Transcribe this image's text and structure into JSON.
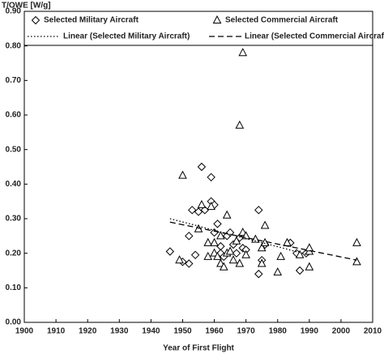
{
  "chart_data": {
    "type": "scatter",
    "x_label": "Year of First Flight",
    "y_label": "T/OWE [W/g]",
    "xlim": [
      1900,
      2010
    ],
    "xticks": [
      1900,
      1910,
      1920,
      1930,
      1940,
      1950,
      1960,
      1970,
      1980,
      1990,
      2000,
      2010
    ],
    "ylim": [
      0,
      0.9
    ],
    "yticks": [
      {
        "value": 0,
        "label": "0.00"
      },
      {
        "value": 0.1,
        "label": "0.10"
      },
      {
        "value": 0.2,
        "label": "0.20"
      },
      {
        "value": 0.3,
        "label": "0.30"
      },
      {
        "value": 0.4,
        "label": "0.40"
      },
      {
        "value": 0.5,
        "label": "0.50"
      },
      {
        "value": 0.6,
        "label": "0.60"
      },
      {
        "value": 0.7,
        "label": "0.70"
      },
      {
        "value": 0.8,
        "label": "0.80"
      },
      {
        "value": 0.9,
        "label": "0.90"
      }
    ],
    "color": "#000000",
    "series": [
      {
        "name": "Selected Military Aircraft",
        "marker": "diamond",
        "x": [
          1946,
          1950,
          1952,
          1952,
          1953,
          1954,
          1955,
          1956,
          1957,
          1959,
          1959,
          1960,
          1960,
          1961,
          1962,
          1962,
          1963,
          1964,
          1965,
          1966,
          1967,
          1968,
          1969,
          1970,
          1974,
          1974,
          1975,
          1976,
          1984,
          1986,
          1987,
          1989
        ],
        "values": [
          0.205,
          0.175,
          0.17,
          0.25,
          0.325,
          0.195,
          0.32,
          0.45,
          0.325,
          0.42,
          0.35,
          0.34,
          0.26,
          0.285,
          0.22,
          0.2,
          0.19,
          0.25,
          0.26,
          0.225,
          0.2,
          0.245,
          0.215,
          0.21,
          0.325,
          0.14,
          0.18,
          0.225,
          0.23,
          0.2,
          0.15,
          0.2
        ]
      },
      {
        "name": "Selected Commercial Aircraft",
        "marker": "triangle",
        "x": [
          1949,
          1950,
          1955,
          1956,
          1958,
          1958,
          1959,
          1960,
          1960,
          1961,
          1962,
          1962,
          1963,
          1964,
          1964,
          1965,
          1966,
          1967,
          1968,
          1968,
          1969,
          1969,
          1970,
          1970,
          1973,
          1975,
          1975,
          1976,
          1976,
          1980,
          1981,
          1983,
          1987,
          1990,
          1990,
          1990,
          2005,
          2005
        ],
        "values": [
          0.18,
          0.425,
          0.27,
          0.34,
          0.19,
          0.23,
          0.335,
          0.23,
          0.2,
          0.19,
          0.25,
          0.17,
          0.16,
          0.2,
          0.31,
          0.205,
          0.18,
          0.235,
          0.57,
          0.17,
          0.78,
          0.26,
          0.25,
          0.195,
          0.24,
          0.17,
          0.215,
          0.23,
          0.28,
          0.145,
          0.19,
          0.23,
          0.195,
          0.205,
          0.16,
          0.215,
          0.23,
          0.175
        ]
      },
      {
        "name": "Linear (Selected Military Aircraft)",
        "line": "dotted",
        "x": [
          1946,
          1990
        ],
        "values": [
          0.3,
          0.195
        ]
      },
      {
        "name": "Linear (Selected Commercial Aircraft)",
        "line": "dashed",
        "x": [
          1946,
          2005
        ],
        "values": [
          0.29,
          0.18
        ]
      }
    ]
  }
}
